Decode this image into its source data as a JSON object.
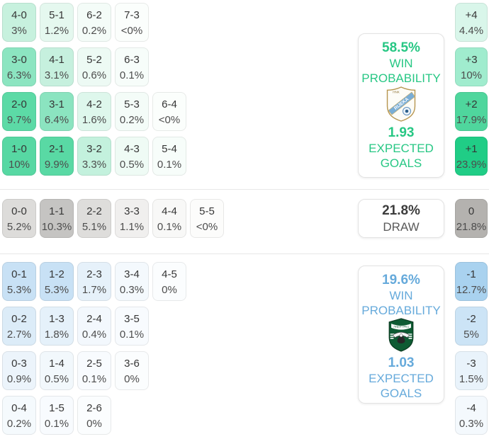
{
  "panels": {
    "home": {
      "win_pct": "58.5%",
      "win_label_1": "WIN",
      "win_label_2": "PROBABILITY",
      "xg": "1.93",
      "xg_label_1": "EXPECTED",
      "xg_label_2": "GOALS",
      "accent_color": "#27c784"
    },
    "draw": {
      "pct": "21.8%",
      "label": "DRAW"
    },
    "away": {
      "win_pct": "19.6%",
      "win_label_1": "WIN",
      "win_label_2": "PROBABILITY",
      "xg": "1.03",
      "xg_label_1": "EXPECTED",
      "xg_label_2": "GOALS",
      "accent_color": "#66aadb"
    }
  },
  "score_grid": {
    "home_win_rows": [
      [
        {
          "score": "4-0",
          "pct": "3%",
          "bg": "#c7f1de"
        },
        {
          "score": "5-1",
          "pct": "1.2%",
          "bg": "#e5f8ef"
        },
        {
          "score": "6-2",
          "pct": "0.2%",
          "bg": "#f4fcf8"
        },
        {
          "score": "7-3",
          "pct": "<0%",
          "bg": "#fbfefc"
        }
      ],
      [
        {
          "score": "3-0",
          "pct": "6.3%",
          "bg": "#8ce5c1"
        },
        {
          "score": "4-1",
          "pct": "3.1%",
          "bg": "#c6f0de"
        },
        {
          "score": "5-2",
          "pct": "0.6%",
          "bg": "#edfaf4"
        },
        {
          "score": "6-3",
          "pct": "0.1%",
          "bg": "#f7fdfa"
        }
      ],
      [
        {
          "score": "2-0",
          "pct": "9.7%",
          "bg": "#5cdaa6"
        },
        {
          "score": "3-1",
          "pct": "6.4%",
          "bg": "#8be4c0"
        },
        {
          "score": "4-2",
          "pct": "1.6%",
          "bg": "#def7ec"
        },
        {
          "score": "5-3",
          "pct": "0.2%",
          "bg": "#f4fcf8"
        },
        {
          "score": "6-4",
          "pct": "<0%",
          "bg": "#fbfefc"
        }
      ],
      [
        {
          "score": "1-0",
          "pct": "10%",
          "bg": "#57d8a3"
        },
        {
          "score": "2-1",
          "pct": "9.9%",
          "bg": "#59d9a4"
        },
        {
          "score": "3-2",
          "pct": "3.3%",
          "bg": "#c3f1dd"
        },
        {
          "score": "4-3",
          "pct": "0.5%",
          "bg": "#effbf5"
        },
        {
          "score": "5-4",
          "pct": "0.1%",
          "bg": "#f7fdfa"
        }
      ]
    ],
    "draw_row": [
      {
        "score": "0-0",
        "pct": "5.2%",
        "bg": "#dddcda"
      },
      {
        "score": "1-1",
        "pct": "10.3%",
        "bg": "#c5c4c2"
      },
      {
        "score": "2-2",
        "pct": "5.1%",
        "bg": "#dedddb"
      },
      {
        "score": "3-3",
        "pct": "1.1%",
        "bg": "#f0efee"
      },
      {
        "score": "4-4",
        "pct": "0.1%",
        "bg": "#f8f8f7"
      },
      {
        "score": "5-5",
        "pct": "<0%",
        "bg": "#fcfcfb"
      }
    ],
    "away_win_rows": [
      [
        {
          "score": "0-1",
          "pct": "5.3%",
          "bg": "#c8e1f5"
        },
        {
          "score": "1-2",
          "pct": "5.3%",
          "bg": "#c8e1f5"
        },
        {
          "score": "2-3",
          "pct": "1.7%",
          "bg": "#e6f1fa"
        },
        {
          "score": "3-4",
          "pct": "0.3%",
          "bg": "#f4f9fd"
        },
        {
          "score": "4-5",
          "pct": "0%",
          "bg": "#fbfdfe"
        }
      ],
      [
        {
          "score": "0-2",
          "pct": "2.7%",
          "bg": "#dcecf8"
        },
        {
          "score": "1-3",
          "pct": "1.8%",
          "bg": "#e5f1fa"
        },
        {
          "score": "2-4",
          "pct": "0.4%",
          "bg": "#f3f8fd"
        },
        {
          "score": "3-5",
          "pct": "0.1%",
          "bg": "#f8fbfe"
        }
      ],
      [
        {
          "score": "0-3",
          "pct": "0.9%",
          "bg": "#ecf4fb"
        },
        {
          "score": "1-4",
          "pct": "0.5%",
          "bg": "#f2f8fc"
        },
        {
          "score": "2-5",
          "pct": "0.1%",
          "bg": "#f8fbfe"
        },
        {
          "score": "3-6",
          "pct": "0%",
          "bg": "#fbfdfe"
        }
      ],
      [
        {
          "score": "0-4",
          "pct": "0.2%",
          "bg": "#f5fafd"
        },
        {
          "score": "1-5",
          "pct": "0.1%",
          "bg": "#f8fbfe"
        },
        {
          "score": "2-6",
          "pct": "0%",
          "bg": "#fbfdfe"
        }
      ]
    ]
  },
  "goal_diff": {
    "home": [
      {
        "diff": "+4",
        "pct": "4.4%",
        "bg": "#d9f6ea"
      },
      {
        "diff": "+3",
        "pct": "10%",
        "bg": "#a0ecce"
      },
      {
        "diff": "+2",
        "pct": "17.9%",
        "bg": "#4fd69d"
      },
      {
        "diff": "+1",
        "pct": "23.9%",
        "bg": "#20cd86"
      }
    ],
    "draw": {
      "diff": "0",
      "pct": "21.8%",
      "bg": "#b4b2af"
    },
    "away": [
      {
        "diff": "-1",
        "pct": "12.7%",
        "bg": "#a9d2ef"
      },
      {
        "diff": "-2",
        "pct": "5%",
        "bg": "#cce4f6"
      },
      {
        "diff": "-3",
        "pct": "1.5%",
        "bg": "#e9f3fb"
      },
      {
        "diff": "-4",
        "pct": "0.3%",
        "bg": "#f4f9fd"
      }
    ]
  }
}
